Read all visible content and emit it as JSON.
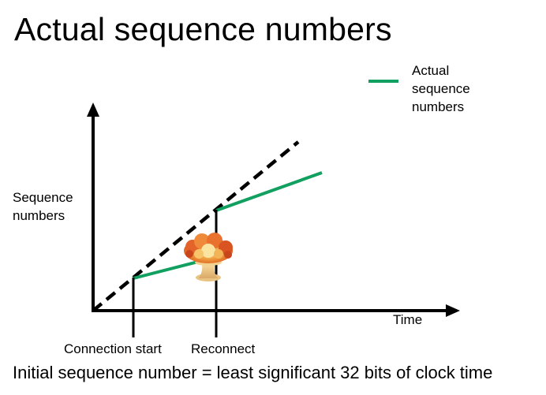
{
  "slide": {
    "title": "Actual sequence numbers",
    "caption": "Initial sequence number = least significant 32 bits of clock time"
  },
  "legend": {
    "label": "Actual sequence numbers",
    "color": "#12a060"
  },
  "axes": {
    "y_label": "Sequence numbers",
    "x_label": "Time"
  },
  "markers": {
    "connection_start": "Connection start",
    "reconnect": "Reconnect"
  },
  "icons": {
    "crash": "mushroom-cloud-explosion-icon"
  },
  "colors": {
    "actual_line": "#12a060",
    "ideal_line": "#000000"
  }
}
